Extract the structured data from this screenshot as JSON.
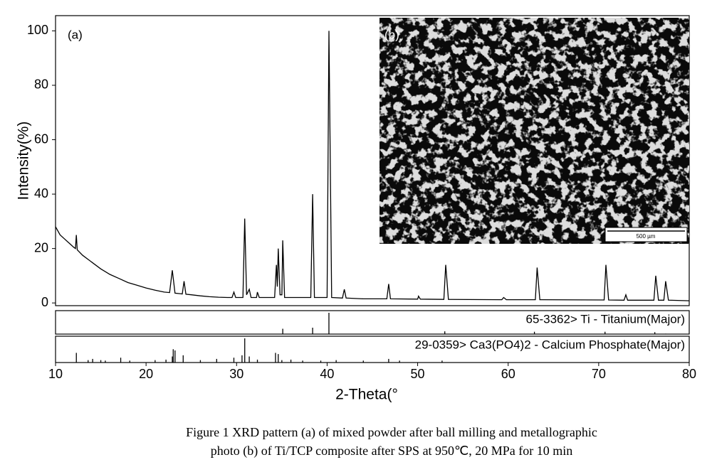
{
  "chart_data": {
    "type": "line",
    "panel_label": "(a)",
    "inset_label": "(b)",
    "scale_bar_label": "500 µm",
    "xlabel": "2-Theta(°",
    "ylabel": "Intensity(%)",
    "xlim": [
      10,
      80
    ],
    "ylim": [
      -1,
      105.6
    ],
    "xticks": [
      10,
      20,
      30,
      40,
      50,
      60,
      70,
      80
    ],
    "yticks": [
      0,
      20,
      40,
      60,
      80,
      100
    ],
    "color": "#000000",
    "x": [
      10,
      10.5,
      11,
      11.5,
      12,
      12.2,
      12.3,
      12.4,
      13,
      14,
      15,
      16,
      17,
      18,
      19,
      20,
      21,
      22,
      22.6,
      22.9,
      23.2,
      24,
      24.2,
      24.4,
      25,
      26,
      27,
      28,
      29,
      29.5,
      29.7,
      29.9,
      30.7,
      30.9,
      31.1,
      31.4,
      31.6,
      32.2,
      32.3,
      32.5,
      34.2,
      34.4,
      34.5,
      34.6,
      34.8,
      35.0,
      35.1,
      35.3,
      38.2,
      38.4,
      38.6,
      40.0,
      40.2,
      40.5,
      41.7,
      41.9,
      42.1,
      44,
      46.6,
      46.8,
      47.0,
      50,
      50.1,
      50.3,
      52.9,
      53.1,
      53.4,
      59.3,
      59.5,
      59.8,
      63.0,
      63.2,
      63.5,
      70.6,
      70.8,
      71.1,
      72.8,
      73.0,
      73.2,
      76.1,
      76.3,
      76.6,
      77.2,
      77.4,
      77.7,
      80
    ],
    "values": [
      28,
      25,
      23.5,
      22,
      20.5,
      20,
      25,
      19.5,
      17.5,
      15,
      12.5,
      10.5,
      9,
      7.5,
      6.5,
      5.5,
      4.7,
      4,
      3.8,
      12,
      3.6,
      3.3,
      8,
      3.2,
      3,
      2.6,
      2.3,
      2.1,
      2,
      2,
      4,
      2,
      2,
      31,
      3,
      5,
      2,
      2,
      4,
      2,
      2,
      14,
      6,
      20,
      3,
      3,
      23,
      2,
      2,
      40,
      2,
      2,
      100,
      2,
      1.8,
      5,
      1.8,
      1.5,
      1.5,
      7,
      1.5,
      1.4,
      2.5,
      1.4,
      1.3,
      14,
      1.3,
      1.2,
      2,
      1.2,
      1.2,
      13,
      1.2,
      1.1,
      14,
      1.1,
      1,
      3,
      1,
      1,
      10,
      1,
      1,
      8,
      1,
      0.8
    ],
    "references": [
      {
        "label": "65-3362> Ti - Titanium(Major)",
        "positions": [
          35.1,
          38.4,
          40.2,
          53.0,
          62.9,
          70.7,
          76.2,
          77.4
        ],
        "intensities": [
          25,
          30,
          100,
          13,
          11,
          11,
          9,
          2
        ]
      },
      {
        "label": "29-0359> Ca3(PO4)2 - Calcium Phosphate(Major)",
        "positions": [
          12.3,
          13.6,
          14.1,
          15.0,
          15.5,
          17.2,
          18.2,
          21.0,
          22.2,
          22.9,
          23.0,
          23.2,
          24.1,
          26.0,
          27.8,
          29.7,
          30.6,
          30.9,
          31.4,
          32.3,
          34.3,
          34.6,
          35.0,
          36.0,
          37.3,
          39.3,
          41.0,
          44.0,
          46.8,
          48.0,
          52.7
        ],
        "intensities": [
          40,
          10,
          15,
          10,
          8,
          20,
          8,
          10,
          12,
          25,
          55,
          50,
          30,
          10,
          15,
          20,
          30,
          100,
          25,
          12,
          40,
          35,
          10,
          12,
          8,
          8,
          10,
          8,
          15,
          8,
          8
        ]
      }
    ],
    "caption": [
      "Figure 1 XRD pattern (a) of mixed powder after ball milling and metallographic",
      "photo (b) of Ti/TCP composite after SPS at 950℃, 20 MPa for 10 min"
    ]
  }
}
